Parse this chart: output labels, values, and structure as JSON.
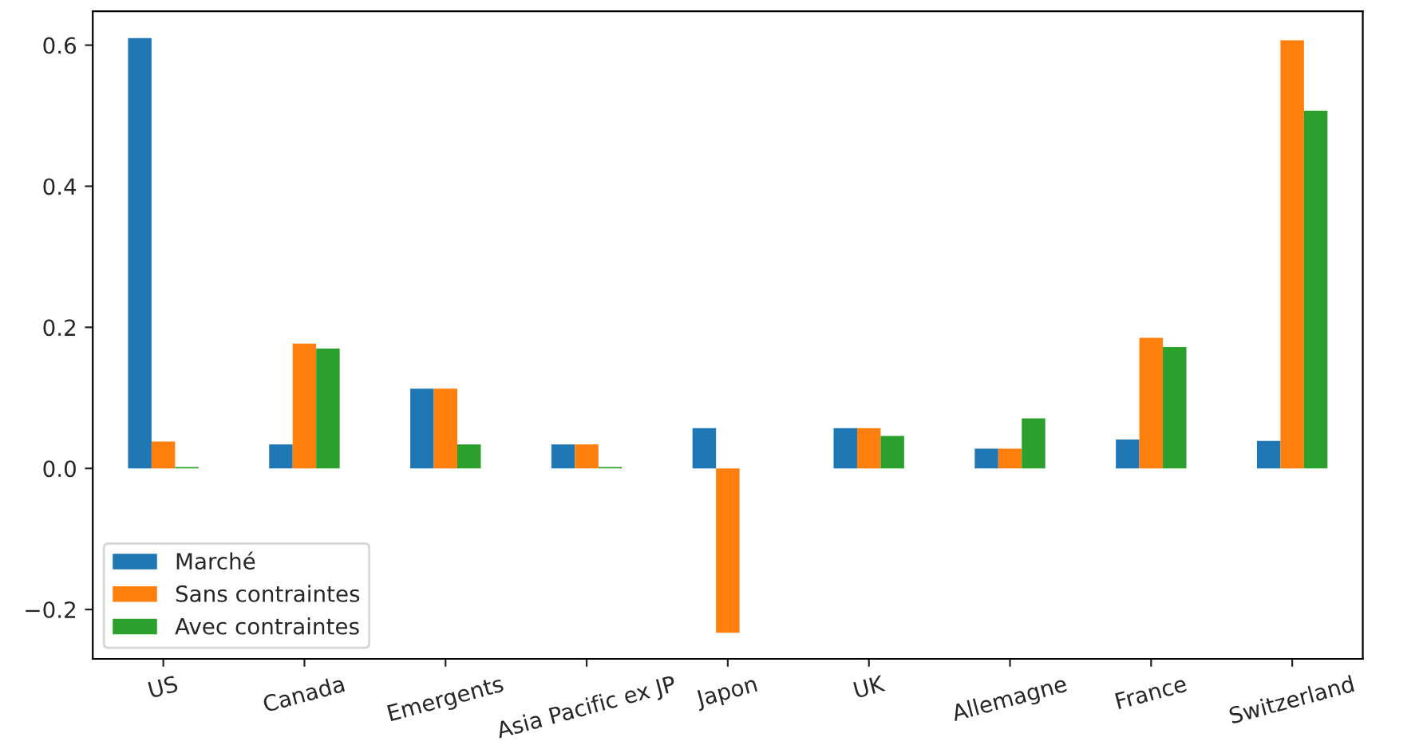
{
  "chart_data": {
    "type": "bar",
    "categories": [
      "US",
      "Canada",
      "Emergents",
      "Asia Pacific ex JP",
      "Japon",
      "UK",
      "Allemagne",
      "France",
      "Switzerland"
    ],
    "series": [
      {
        "name": "Marché",
        "color": "#1f77b4",
        "values": [
          0.61,
          0.034,
          0.113,
          0.034,
          0.057,
          0.057,
          0.028,
          0.041,
          0.039
        ]
      },
      {
        "name": "Sans contraintes",
        "color": "#ff7f0e",
        "values": [
          0.038,
          0.177,
          0.113,
          0.034,
          -0.233,
          0.057,
          0.028,
          0.185,
          0.607
        ]
      },
      {
        "name": "Avec contraintes",
        "color": "#2ca02c",
        "values": [
          0.002,
          0.17,
          0.034,
          0.002,
          null,
          0.046,
          0.071,
          0.172,
          0.507
        ]
      }
    ],
    "ylim": [
      -0.27,
      0.648
    ],
    "yticks": [
      {
        "value": -0.2,
        "label": "−0.2"
      },
      {
        "value": 0.0,
        "label": "0.0"
      },
      {
        "value": 0.2,
        "label": "0.2"
      },
      {
        "value": 0.4,
        "label": "0.4"
      },
      {
        "value": 0.6,
        "label": "0.6"
      }
    ],
    "legend": "bottom left",
    "grid": false
  }
}
